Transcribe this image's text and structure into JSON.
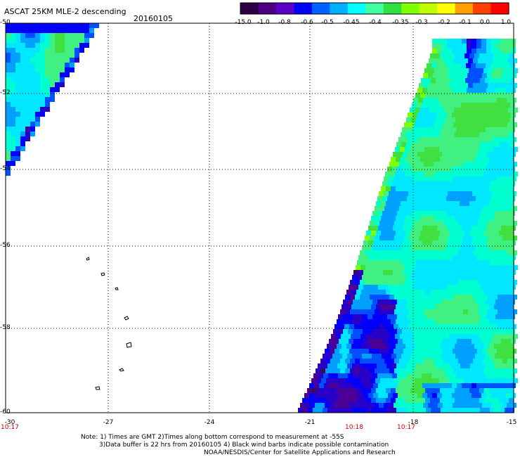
{
  "header": {
    "title": "ASCAT 25KM MLE-2 descending",
    "date": "20160105"
  },
  "colorbar": {
    "labels": [
      "-15.0",
      "-1.0",
      "-0.8",
      "-0.6",
      "-0.5",
      "-0.45",
      "-0.4",
      "-0.35",
      "-0.3",
      "-0.2",
      "-0.1",
      "0.0",
      "1.0"
    ],
    "colors": [
      "#2a0040",
      "#4b0082",
      "#5a00c8",
      "#0000ff",
      "#0060ff",
      "#00b0ff",
      "#00ffff",
      "#40ffa0",
      "#30e040",
      "#80ff00",
      "#c0ff00",
      "#ffff00",
      "#ffa000",
      "#ff4000",
      "#ff0000"
    ]
  },
  "axes": {
    "lat_labels": [
      "-50",
      "-52",
      "-54",
      "-56",
      "-58",
      "-60"
    ],
    "lon_labels": [
      "-30",
      "-27",
      "-24",
      "-21",
      "-18",
      "-15"
    ],
    "time_labels": [
      "10:17",
      "10:18",
      "10:17"
    ]
  },
  "notes": {
    "line1": "Note: 1) Times are GMT 2)Times along bottom correspond to measurement at -55S",
    "line2": "3)Data buffer is 22 hrs from 20160105 4) Black wind barbs indicate possible contamination",
    "line3": "NOAA/NESDIS/Center for Satellite Applications and Research"
  },
  "map_data": {
    "lat_range": [
      -60,
      -50
    ],
    "lon_range": [
      -30,
      -15
    ],
    "swath_left": "north-west corner wedge",
    "swath_right": "eastern swath from -21 to -15 longitude",
    "islands": "South Sandwich Islands outlines"
  }
}
